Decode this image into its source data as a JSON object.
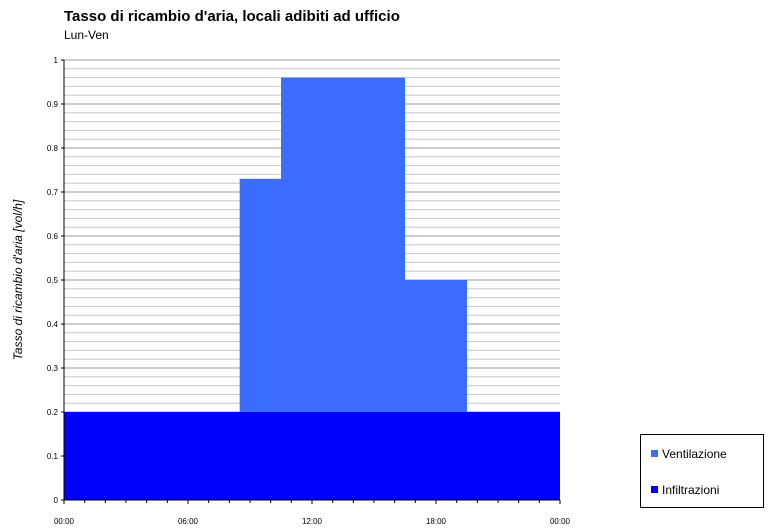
{
  "chart_data": {
    "type": "area",
    "title": "Tasso di ricambio d'aria, locali adibiti ad ufficio",
    "subtitle": "Lun-Ven",
    "ylabel": "Tasso di ricambio d'aria [vol/h]",
    "xlabel": "",
    "x_tick_labels": [
      "00:00",
      "06:00",
      "12:00",
      "18:00",
      "00:00"
    ],
    "y_tick_labels": [
      "0",
      "0.1",
      "0.2",
      "0.3",
      "0.4",
      "0.5",
      "0.6",
      "0.7",
      "0.8",
      "0.9",
      "1"
    ],
    "xlim": [
      0,
      24
    ],
    "ylim": [
      0,
      1
    ],
    "grid": true,
    "stacked": true,
    "legend_position": "bottom-right",
    "series": [
      {
        "name": "Infiltrazioni",
        "color": "#0000ff",
        "segments": [
          {
            "start": 0,
            "end": 24,
            "value": 0.2
          }
        ]
      },
      {
        "name": "Ventilazione",
        "color": "#3a6dff",
        "segments": [
          {
            "start": 8.5,
            "end": 10.5,
            "value": 0.53
          },
          {
            "start": 10.5,
            "end": 16.5,
            "value": 0.76
          },
          {
            "start": 16.5,
            "end": 19.5,
            "value": 0.3
          }
        ]
      }
    ],
    "legend": [
      {
        "label": "Ventilazione",
        "color": "#3a6dff"
      },
      {
        "label": "Infiltrazioni",
        "color": "#0000ff"
      }
    ]
  }
}
